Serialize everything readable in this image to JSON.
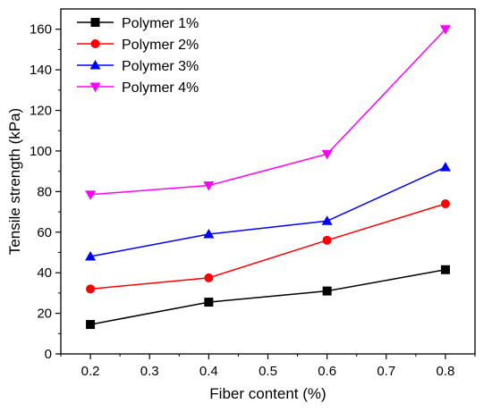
{
  "chart_data": {
    "type": "line",
    "xlabel": "Fiber content (%)",
    "ylabel": "Tensile strength (kPa)",
    "xlim": [
      0.15,
      0.85
    ],
    "ylim": [
      0,
      170
    ],
    "x_ticks": [
      "0.2",
      "0.3",
      "0.4",
      "0.5",
      "0.6",
      "0.7",
      "0.8"
    ],
    "y_ticks": [
      "0",
      "20",
      "40",
      "60",
      "80",
      "100",
      "120",
      "140",
      "160"
    ],
    "grid": false,
    "legend_position": "top-left",
    "x": [
      0.2,
      0.4,
      0.6,
      0.8
    ],
    "series": [
      {
        "name": "Polymer 1%",
        "values": [
          14.5,
          25.5,
          31.0,
          41.5
        ],
        "color": "#000000",
        "marker": "square"
      },
      {
        "name": "Polymer 2%",
        "values": [
          32.0,
          37.5,
          56.0,
          74.0
        ],
        "color": "#ff0000",
        "marker": "circle"
      },
      {
        "name": "Polymer 3%",
        "values": [
          48.0,
          59.0,
          65.5,
          92.0
        ],
        "color": "#0000ff",
        "marker": "triangle-up"
      },
      {
        "name": "Polymer 4%",
        "values": [
          78.5,
          83.0,
          98.5,
          160.0
        ],
        "color": "#ff00ff",
        "marker": "triangle-down"
      }
    ]
  }
}
